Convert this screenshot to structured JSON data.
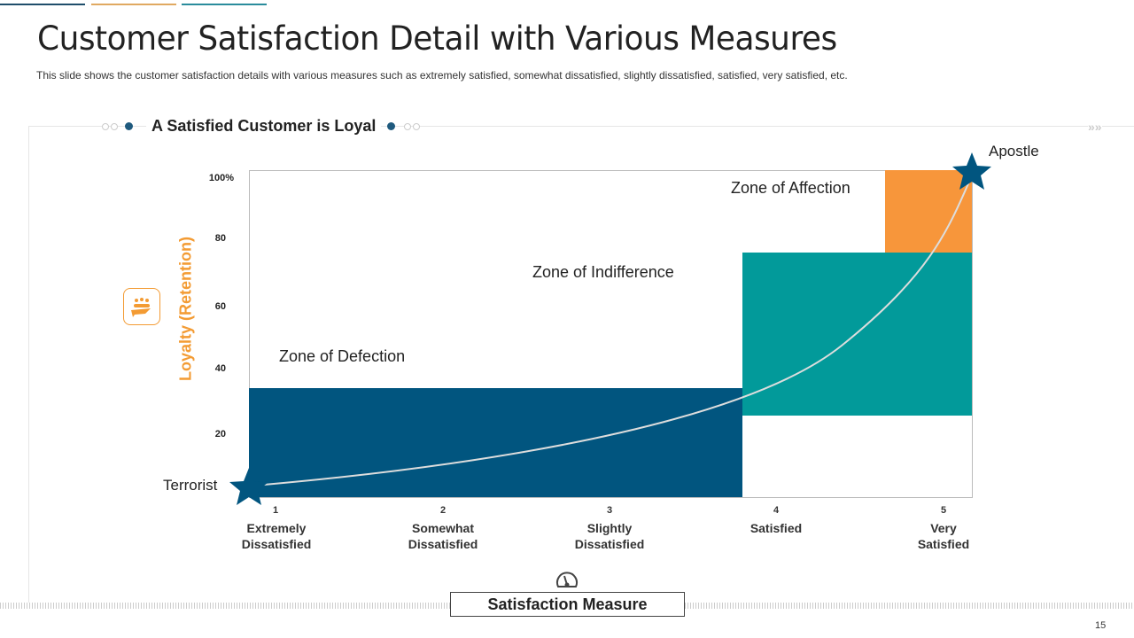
{
  "header": {
    "title": "Customer Satisfaction Detail with Various Measures",
    "subtitle": "This slide shows the customer satisfaction details with various measures such as extremely satisfied, somewhat dissatisfied, slightly dissatisfied, satisfied, very satisfied, etc."
  },
  "section_title": "A Satisfied Customer is Loyal",
  "colors": {
    "dark_blue": "#01557f",
    "teal": "#029a9a",
    "orange": "#f7963b",
    "accent_orange": "#f39b33"
  },
  "y_axis": {
    "label": "Loyalty (Retention)",
    "ticks": [
      "100%",
      "80",
      "60",
      "40",
      "20"
    ]
  },
  "x_axis": {
    "label": "Satisfaction Measure",
    "numbers": [
      "1",
      "2",
      "3",
      "4",
      "5"
    ],
    "categories": [
      "Extremely Dissatisfied",
      "Somewhat Dissatisfied",
      "Slightly Dissatisfied",
      "Satisfied",
      "Very Satisfied"
    ]
  },
  "zones": {
    "defection": "Zone of Defection",
    "indifference": "Zone of Indifference",
    "affection": "Zone of Affection"
  },
  "markers": {
    "low": "Terrorist",
    "high": "Apostle"
  },
  "page_number": "15"
}
